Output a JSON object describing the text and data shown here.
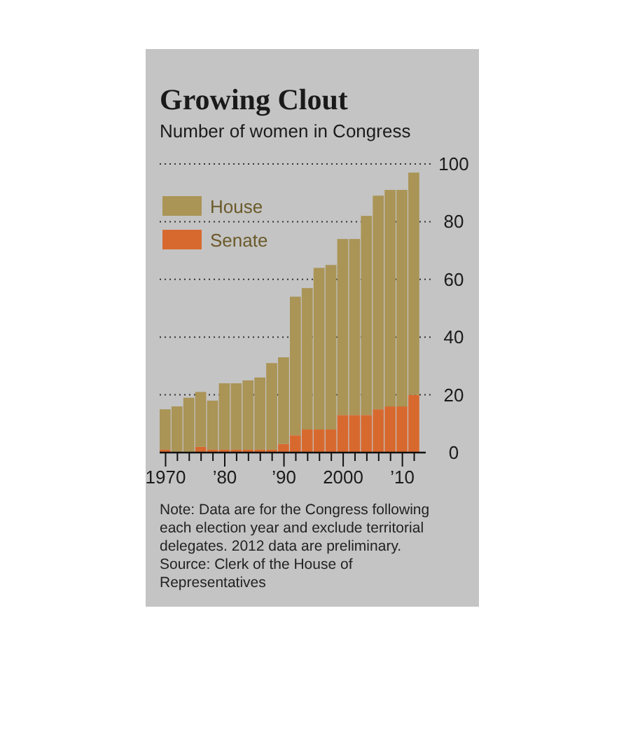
{
  "chart_data": {
    "type": "bar",
    "stacked": true,
    "title": "Growing Clout",
    "subtitle": "Number of women in Congress",
    "x": [
      1970,
      1972,
      1974,
      1976,
      1978,
      1980,
      1982,
      1984,
      1986,
      1988,
      1990,
      1992,
      1994,
      1996,
      1998,
      2000,
      2002,
      2004,
      2006,
      2008,
      2010,
      2012
    ],
    "series": [
      {
        "name": "Senate",
        "color": "#d8692e",
        "values": [
          1,
          0,
          0,
          2,
          1,
          1,
          1,
          1,
          1,
          1,
          3,
          6,
          8,
          8,
          8,
          13,
          13,
          13,
          15,
          16,
          16,
          20
        ]
      },
      {
        "name": "House",
        "color": "#aa9456",
        "values": [
          14,
          16,
          19,
          19,
          17,
          23,
          23,
          24,
          25,
          30,
          30,
          48,
          49,
          56,
          57,
          61,
          61,
          69,
          74,
          75,
          75,
          77
        ]
      }
    ],
    "xlim": [
      1969,
      2013
    ],
    "xticks": [
      {
        "value": 1970,
        "label": "1970"
      },
      {
        "value": 1972,
        "label": null
      },
      {
        "value": 1974,
        "label": null
      },
      {
        "value": 1976,
        "label": null
      },
      {
        "value": 1978,
        "label": null
      },
      {
        "value": 1980,
        "label": "’80"
      },
      {
        "value": 1982,
        "label": null
      },
      {
        "value": 1984,
        "label": null
      },
      {
        "value": 1986,
        "label": null
      },
      {
        "value": 1988,
        "label": null
      },
      {
        "value": 1990,
        "label": "’90"
      },
      {
        "value": 1992,
        "label": null
      },
      {
        "value": 1994,
        "label": null
      },
      {
        "value": 1996,
        "label": null
      },
      {
        "value": 1998,
        "label": null
      },
      {
        "value": 2000,
        "label": "2000"
      },
      {
        "value": 2002,
        "label": null
      },
      {
        "value": 2004,
        "label": null
      },
      {
        "value": 2006,
        "label": null
      },
      {
        "value": 2008,
        "label": null
      },
      {
        "value": 2010,
        "label": "’10"
      },
      {
        "value": 2012,
        "label": null
      }
    ],
    "ylim": [
      0,
      100
    ],
    "yticks": [
      0,
      20,
      40,
      60,
      80,
      100
    ],
    "grid": "y",
    "legend": "top left",
    "annotations": [
      "Note: Data are for the Congress following each election year and exclude territorial delegates. 2012 data are preliminary.",
      "Source: Clerk of the House of Representatives"
    ]
  }
}
